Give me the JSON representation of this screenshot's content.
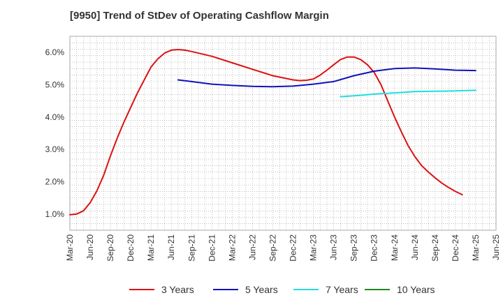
{
  "chart_data": {
    "type": "line",
    "title": "[9950]  Trend of StDev of Operating Cashflow Margin",
    "xlabel": "",
    "ylabel": "",
    "ylim": [
      0.5,
      6.5
    ],
    "yticks": [
      "1.0%",
      "2.0%",
      "3.0%",
      "4.0%",
      "5.0%",
      "6.0%"
    ],
    "ytick_values": [
      1,
      2,
      3,
      4,
      5,
      6
    ],
    "xticks": [
      "Mar-20",
      "Jun-20",
      "Sep-20",
      "Dec-20",
      "Mar-21",
      "Jun-21",
      "Sep-21",
      "Dec-21",
      "Mar-22",
      "Jun-22",
      "Sep-22",
      "Dec-22",
      "Mar-23",
      "Jun-23",
      "Sep-23",
      "Dec-23",
      "Mar-24",
      "Jun-24",
      "Sep-24",
      "Dec-24",
      "Mar-25",
      "Jun-25"
    ],
    "grid": true,
    "legend_position": "bottom",
    "series": [
      {
        "name": "3 Years",
        "color": "#dd1111",
        "points": [
          [
            "Mar-20",
            0.98
          ],
          [
            "Apr-20",
            1.0
          ],
          [
            "May-20",
            1.1
          ],
          [
            "Jun-20",
            1.35
          ],
          [
            "Jul-20",
            1.72
          ],
          [
            "Aug-20",
            2.2
          ],
          [
            "Sep-20",
            2.8
          ],
          [
            "Oct-20",
            3.35
          ],
          [
            "Nov-20",
            3.85
          ],
          [
            "Dec-20",
            4.3
          ],
          [
            "Jan-21",
            4.75
          ],
          [
            "Feb-21",
            5.15
          ],
          [
            "Mar-21",
            5.55
          ],
          [
            "Apr-21",
            5.8
          ],
          [
            "May-21",
            5.98
          ],
          [
            "Jun-21",
            6.07
          ],
          [
            "Jul-21",
            6.09
          ],
          [
            "Aug-21",
            6.07
          ],
          [
            "Sep-21",
            6.03
          ],
          [
            "Dec-21",
            5.88
          ],
          [
            "Mar-22",
            5.68
          ],
          [
            "Jun-22",
            5.48
          ],
          [
            "Sep-22",
            5.28
          ],
          [
            "Dec-22",
            5.15
          ],
          [
            "Jan-23",
            5.13
          ],
          [
            "Feb-23",
            5.14
          ],
          [
            "Mar-23",
            5.18
          ],
          [
            "Apr-23",
            5.3
          ],
          [
            "May-23",
            5.45
          ],
          [
            "Jun-23",
            5.62
          ],
          [
            "Jul-23",
            5.78
          ],
          [
            "Aug-23",
            5.86
          ],
          [
            "Sep-23",
            5.86
          ],
          [
            "Oct-23",
            5.78
          ],
          [
            "Nov-23",
            5.62
          ],
          [
            "Dec-23",
            5.38
          ],
          [
            "Jan-24",
            5.0
          ],
          [
            "Feb-24",
            4.5
          ],
          [
            "Mar-24",
            4.0
          ],
          [
            "Apr-24",
            3.55
          ],
          [
            "May-24",
            3.12
          ],
          [
            "Jun-24",
            2.78
          ],
          [
            "Jul-24",
            2.5
          ],
          [
            "Aug-24",
            2.3
          ],
          [
            "Sep-24",
            2.12
          ],
          [
            "Oct-24",
            1.96
          ],
          [
            "Nov-24",
            1.82
          ],
          [
            "Dec-24",
            1.7
          ],
          [
            "Jan-25",
            1.6
          ]
        ]
      },
      {
        "name": "5 Years",
        "color": "#1111bb",
        "points": [
          [
            "Jul-21",
            5.15
          ],
          [
            "Sep-21",
            5.1
          ],
          [
            "Dec-21",
            5.02
          ],
          [
            "Mar-22",
            4.98
          ],
          [
            "Jun-22",
            4.95
          ],
          [
            "Sep-22",
            4.94
          ],
          [
            "Dec-22",
            4.96
          ],
          [
            "Mar-23",
            5.02
          ],
          [
            "Jun-23",
            5.1
          ],
          [
            "Sep-23",
            5.28
          ],
          [
            "Dec-23",
            5.42
          ],
          [
            "Mar-24",
            5.5
          ],
          [
            "Jun-24",
            5.52
          ],
          [
            "Sep-24",
            5.49
          ],
          [
            "Dec-24",
            5.45
          ],
          [
            "Mar-25",
            5.44
          ]
        ]
      },
      {
        "name": "7 Years",
        "color": "#22dddd",
        "points": [
          [
            "Jul-23",
            4.63
          ],
          [
            "Sep-23",
            4.66
          ],
          [
            "Dec-23",
            4.71
          ],
          [
            "Mar-24",
            4.75
          ],
          [
            "Jun-24",
            4.79
          ],
          [
            "Sep-24",
            4.8
          ],
          [
            "Dec-24",
            4.81
          ],
          [
            "Mar-25",
            4.83
          ]
        ]
      },
      {
        "name": "10 Years",
        "color": "#228822",
        "points": []
      }
    ]
  }
}
